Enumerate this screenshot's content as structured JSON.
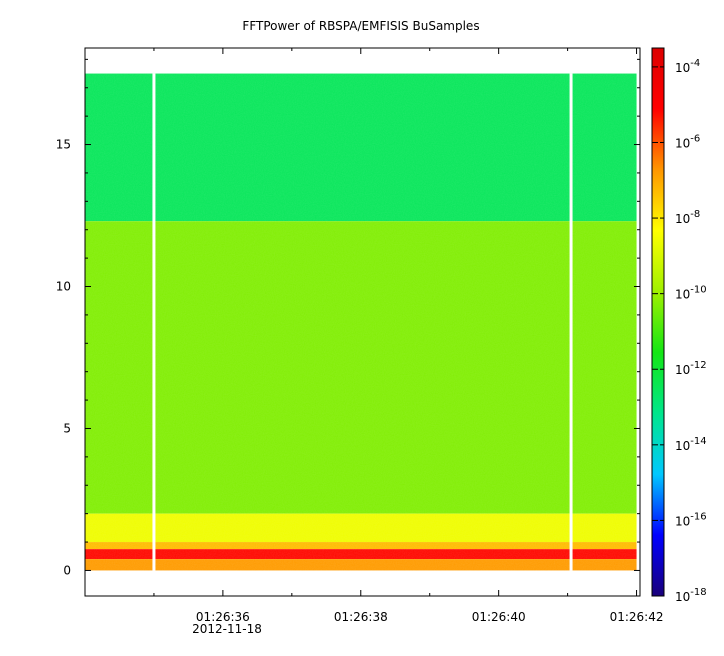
{
  "chart_data": {
    "type": "heatmap",
    "title": "FFTPower of RBSPA/EMFISIS  BuSamples",
    "xlabel": "",
    "ylabel": "",
    "x_ticks": [
      "01:26:36",
      "01:26:38",
      "01:26:40",
      "01:26:42"
    ],
    "x_tick_date": "2012-11-18",
    "x_tick_seconds": [
      36,
      38,
      40,
      42
    ],
    "x_minor_seconds": [
      35,
      37,
      39,
      41
    ],
    "xlim_seconds": [
      34.0,
      42.05
    ],
    "y_ticks": [
      0,
      5,
      10,
      15
    ],
    "ylim": [
      -0.9,
      18.4
    ],
    "data_yrange": [
      0,
      17.5
    ],
    "data_xrange_seconds": [
      34.0,
      42.0
    ],
    "gaps_seconds": [
      35.0,
      41.05
    ],
    "color_scale": "log",
    "colorbar_ticks": [
      {
        "base": "10",
        "exp": "-4",
        "value": -4
      },
      {
        "base": "10",
        "exp": "-6",
        "value": -6
      },
      {
        "base": "10",
        "exp": "-8",
        "value": -8
      },
      {
        "base": "10",
        "exp": "-10",
        "value": -10
      },
      {
        "base": "10",
        "exp": "-12",
        "value": -12
      },
      {
        "base": "10",
        "exp": "-14",
        "value": -14
      },
      {
        "base": "10",
        "exp": "-16",
        "value": -16
      },
      {
        "base": "10",
        "exp": "-18",
        "value": -18
      }
    ],
    "clim_log10": [
      -18,
      -3.5
    ],
    "colormap": [
      "#1a007a",
      "#0000ff",
      "#00c8ff",
      "#00e68c",
      "#14e614",
      "#a0f000",
      "#ffff00",
      "#ff9600",
      "#ff0000",
      "#dc0000"
    ],
    "bands_log10": [
      {
        "y0": 12.3,
        "y1": 17.5,
        "level": -12.5
      },
      {
        "y0": 2.0,
        "y1": 12.3,
        "level": -10.3
      },
      {
        "y0": 1.0,
        "y1": 2.0,
        "level": -8.6
      },
      {
        "y0": 0.75,
        "y1": 1.0,
        "level": -7.3
      },
      {
        "y0": 0.4,
        "y1": 0.75,
        "level": -5.2
      },
      {
        "y0": 0.0,
        "y1": 0.4,
        "level": -6.8
      }
    ]
  }
}
